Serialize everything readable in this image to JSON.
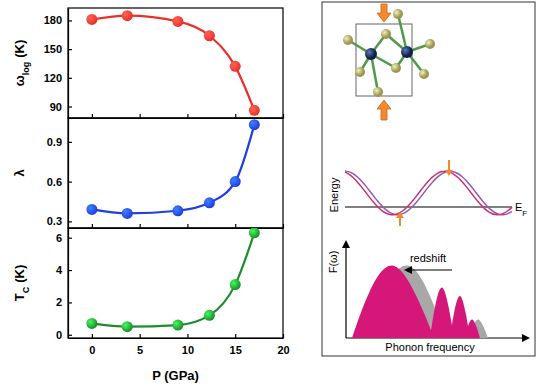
{
  "chart_data": [
    {
      "type": "line",
      "ylabel": [
        "ω",
        "log",
        "(K)"
      ],
      "x": [
        0,
        3.7,
        9,
        12.3,
        15,
        17
      ],
      "values": [
        181,
        185,
        179,
        164,
        132,
        86
      ],
      "color": "#e8312a",
      "marker": "circle",
      "xlim": [
        -2.5,
        20
      ],
      "xticks": [
        0,
        5,
        10,
        15,
        20
      ],
      "ylim": [
        78,
        193
      ],
      "yticks": [
        90,
        120,
        150,
        180
      ],
      "tick_labels": "y"
    },
    {
      "type": "line",
      "ylabel": [
        "λ"
      ],
      "x": [
        0,
        3.7,
        9,
        12.3,
        15,
        17
      ],
      "values": [
        0.39,
        0.36,
        0.38,
        0.44,
        0.6,
        1.03
      ],
      "color": "#1f3fe0",
      "marker": "circle",
      "xlim": [
        -2.5,
        20
      ],
      "xticks": [
        0,
        5,
        10,
        15,
        20
      ],
      "ylim": [
        0.25,
        1.08
      ],
      "yticks": [
        0.3,
        0.6,
        0.9
      ],
      "tick_labels": "y"
    },
    {
      "type": "line",
      "ylabel": [
        "T",
        "C",
        "(K)"
      ],
      "xlabel": "P (GPa)",
      "x": [
        0,
        3.7,
        9,
        12.3,
        15,
        17
      ],
      "values": [
        0.7,
        0.5,
        0.6,
        1.2,
        3.1,
        6.3
      ],
      "color": "#1e8c2c",
      "marker": "circle",
      "xlim": [
        -2.5,
        20
      ],
      "xticks": [
        0,
        5,
        10,
        15,
        20
      ],
      "ylim": [
        -0.2,
        6.6
      ],
      "yticks": [
        0,
        2,
        4,
        6
      ],
      "tick_labels": true
    }
  ],
  "schematic": {
    "energy_label": "Energy",
    "fermi_label": [
      "E",
      "F"
    ],
    "dos_label": "F(ω)",
    "frequency_label": "Phonon frequency",
    "shift_label": "redshift"
  }
}
